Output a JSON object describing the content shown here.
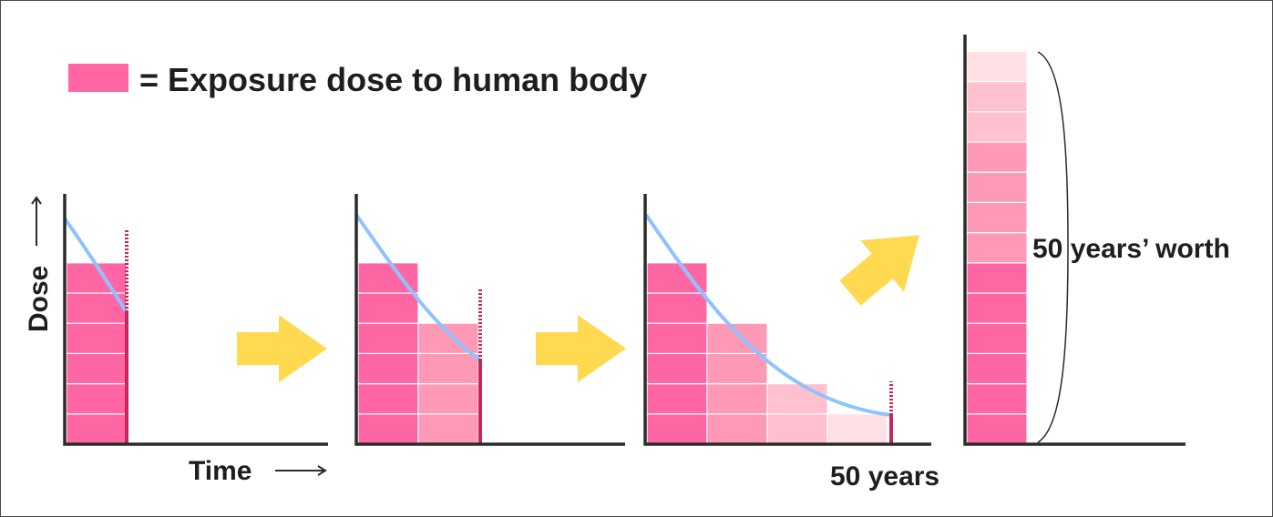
{
  "legend": {
    "label": "= Exposure dose to human body",
    "swatch_color": "#ff66a3"
  },
  "axes": {
    "y_label": "Dose",
    "x_label": "Time",
    "end_label": "50 years"
  },
  "result": {
    "label": "50 years’ worth"
  },
  "colors": {
    "decay_curve": "#8fc3ff",
    "arrow": "#ffd94f",
    "marker": "#c8265c",
    "axis": "#2b2b2b",
    "block_shades": [
      "#ff66a3",
      "#ff99b6",
      "#ffc0cf",
      "#ffe0e4"
    ]
  },
  "chart_data": {
    "type": "diagram",
    "description_of_steps": [
      {
        "panel": 1,
        "blocks": [
          6
        ]
      },
      {
        "panel": 2,
        "blocks": [
          6,
          4
        ]
      },
      {
        "panel": 3,
        "blocks": [
          6,
          4,
          2,
          1
        ]
      },
      {
        "panel": 4,
        "stacked_total": 13
      }
    ]
  }
}
